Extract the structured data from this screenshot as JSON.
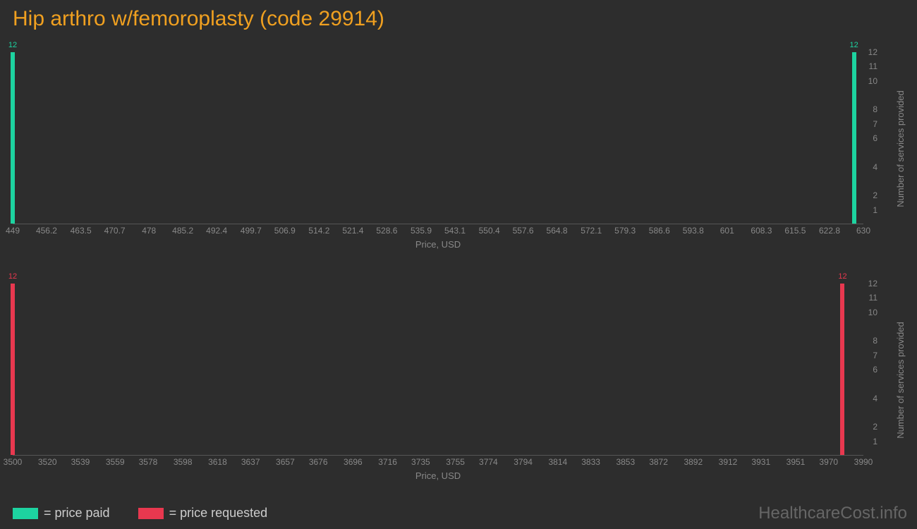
{
  "title": "Hip arthro w/femoroplasty (code 29914)",
  "colors": {
    "background": "#2d2d2d",
    "title": "#f0a020",
    "paid": "#1dd3a0",
    "requested": "#e8384f",
    "tick": "#888888",
    "axis": "#555555"
  },
  "ymax": 12,
  "yticks": [
    1,
    2,
    4,
    6,
    7,
    8,
    10,
    11,
    12
  ],
  "ylabel": "Number of services provided",
  "xlabel": "Price, USD",
  "chart_top": {
    "type": "bar",
    "color_key": "paid",
    "xmin": 449,
    "xmax": 630,
    "xticks": [
      449,
      456.2,
      463.5,
      470.7,
      478,
      485.2,
      492.4,
      499.7,
      506.9,
      514.2,
      521.4,
      528.6,
      535.9,
      543.1,
      550.4,
      557.6,
      564.8,
      572.1,
      579.3,
      586.6,
      593.8,
      601,
      608.3,
      615.5,
      622.8,
      630
    ],
    "bars": [
      {
        "x": 449,
        "y": 12
      },
      {
        "x": 628,
        "y": 12
      }
    ]
  },
  "chart_bottom": {
    "type": "bar",
    "color_key": "requested",
    "xmin": 3500,
    "xmax": 3990,
    "xticks": [
      3500,
      3520,
      3539,
      3559,
      3578,
      3598,
      3618,
      3637,
      3657,
      3676,
      3696,
      3716,
      3735,
      3755,
      3774,
      3794,
      3814,
      3833,
      3853,
      3872,
      3892,
      3912,
      3931,
      3951,
      3970,
      3990
    ],
    "bars": [
      {
        "x": 3500,
        "y": 12
      },
      {
        "x": 3978,
        "y": 12
      }
    ]
  },
  "legend": {
    "paid": "= price paid",
    "requested": "= price requested"
  },
  "watermark": "HealthcareCost.info"
}
